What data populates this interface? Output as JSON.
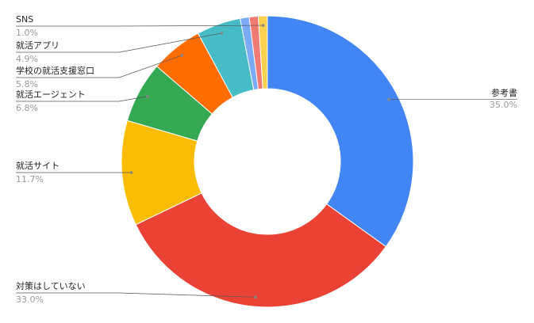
{
  "chart_data": {
    "type": "donut",
    "categories": [
      "参考書",
      "対策はしていない",
      "就活サイト",
      "就活エージェント",
      "学校の就活支援窓口",
      "就活アプリ",
      null,
      null,
      "SNS"
    ],
    "values": [
      35.0,
      33.0,
      11.7,
      6.8,
      5.8,
      4.9,
      1.0,
      1.0,
      1.0
    ],
    "value_labels": [
      "35.0%",
      "33.0%",
      "11.7%",
      "6.8%",
      "5.8%",
      "4.9%",
      null,
      null,
      "1.0%"
    ],
    "colors": [
      "#4285f4",
      "#ea4335",
      "#fbbc04",
      "#34a853",
      "#ff6d01",
      "#46bdc6",
      "#7baaf7",
      "#f07b72",
      "#fcd04f"
    ]
  }
}
